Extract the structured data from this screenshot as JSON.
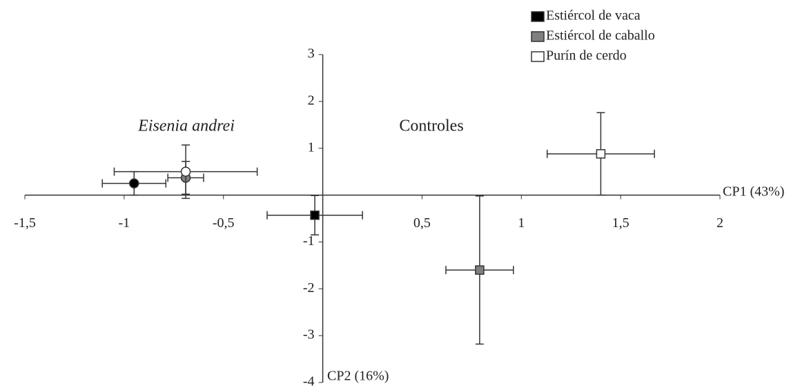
{
  "chart_data": {
    "type": "scatter",
    "xlabel": "CP1 (43%)",
    "ylabel": "CP2 (16%)",
    "annotations": [
      "Eisenia andrei",
      "Controles"
    ],
    "markers": [
      "circle",
      "square"
    ],
    "xlim": [
      -1.5,
      2
    ],
    "ylim": [
      -4,
      3
    ],
    "xticks": [
      {
        "value": -1.5,
        "label": "-1,5"
      },
      -1,
      {
        "value": -0.5,
        "label": "-0,5"
      },
      {
        "value": 0.5,
        "label": "0,5"
      },
      1,
      {
        "value": 1.5,
        "label": "1,5"
      },
      2
    ],
    "yticks": [
      -4,
      -3,
      -2,
      -1,
      1,
      2,
      3
    ],
    "series": [
      {
        "name": "Estiércol de vaca",
        "color": "#000000",
        "x": [
          -0.95,
          -0.04
        ],
        "y": [
          0.25,
          -0.43
        ],
        "xerr": [
          0.16,
          0.24
        ],
        "yerr": [
          0.25,
          0.42
        ]
      },
      {
        "name": "Estiércol de caballo",
        "color": "#808080",
        "x": [
          -0.69,
          0.79
        ],
        "y": [
          0.37,
          -1.6
        ],
        "xerr": [
          0.09,
          0.17
        ],
        "yerr": [
          0.35,
          1.58
        ]
      },
      {
        "name": "Purín de cerdo",
        "color": "#ffffff",
        "x": [
          -0.69,
          1.4
        ],
        "y": [
          0.5,
          0.88
        ],
        "xerr": [
          0.36,
          0.27
        ],
        "yerr": [
          0.57,
          0.88
        ]
      }
    ]
  }
}
